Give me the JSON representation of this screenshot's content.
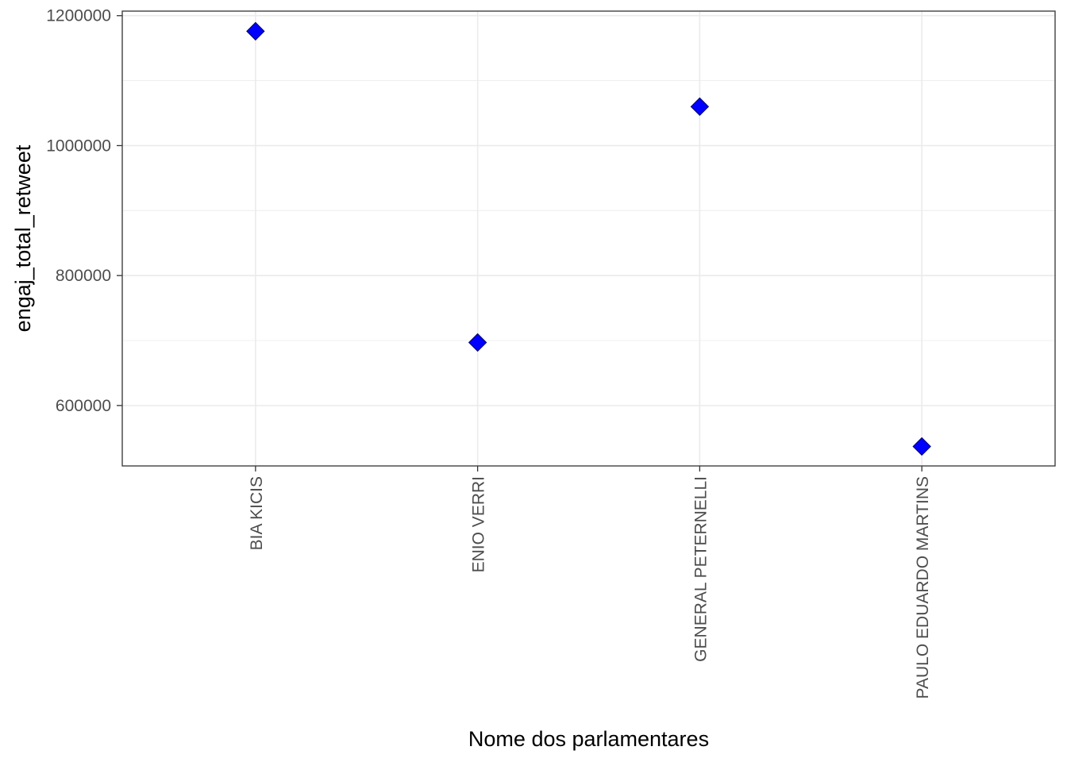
{
  "chart_data": {
    "type": "scatter",
    "title": "",
    "xlabel": "Nome dos parlamentares",
    "ylabel": "engaj_total_retweet",
    "categories": [
      "BIA KICIS",
      "ENIO VERRI",
      "GENERAL PETERNELLI",
      "PAULO EDUARDO MARTINS"
    ],
    "values": [
      1176000,
      697000,
      1060000,
      537000
    ],
    "yticks": [
      600000,
      800000,
      1000000,
      1200000
    ],
    "ylim": [
      507000,
      1207000
    ],
    "grid": true,
    "legend": "none",
    "marker": "diamond",
    "colors": {
      "point_fill": "#0000ff",
      "point_stroke": "#000066",
      "grid": "#ebebeb",
      "panel_border": "#333333"
    }
  }
}
